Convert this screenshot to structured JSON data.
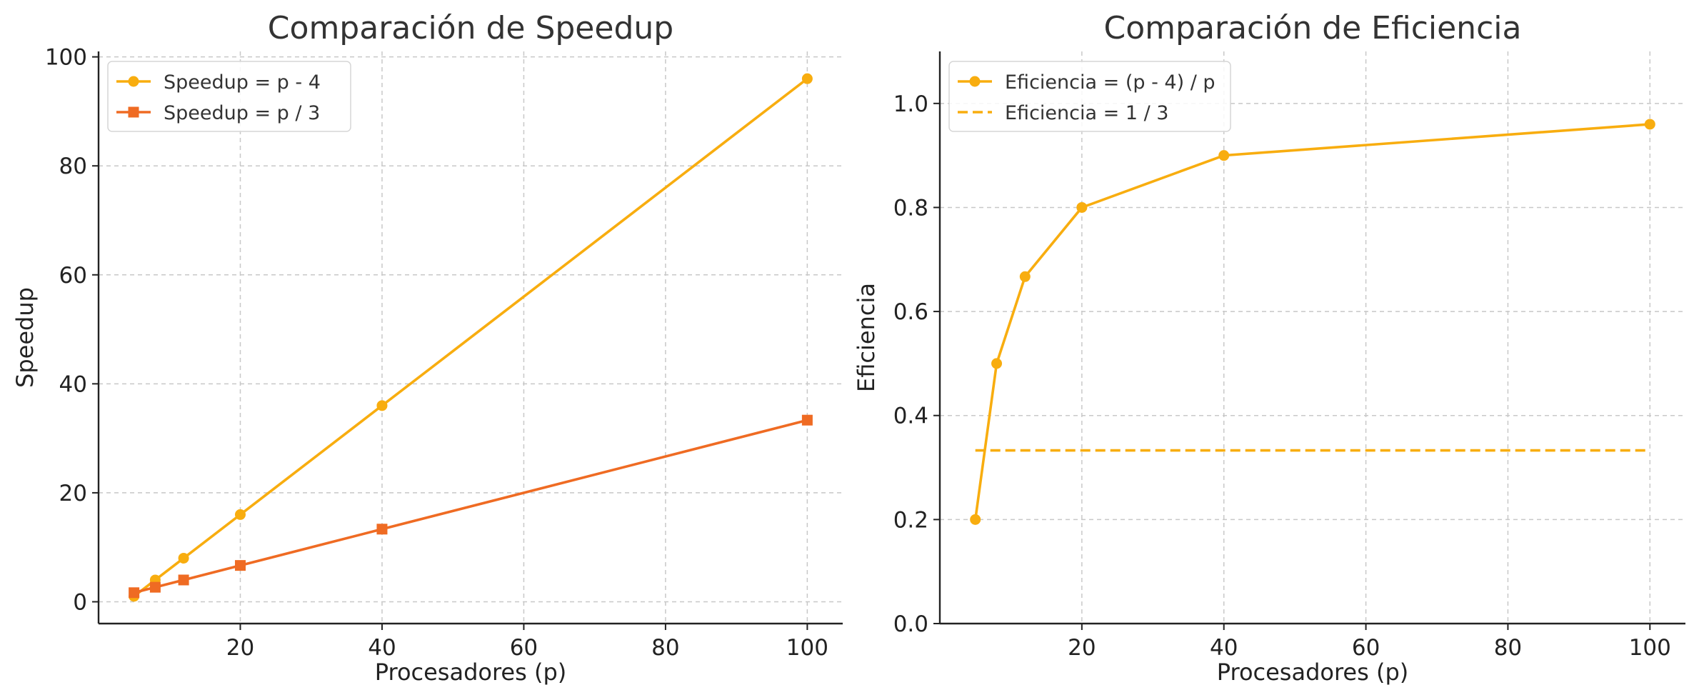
{
  "chart_data": [
    {
      "type": "line",
      "title": "Comparación de Speedup",
      "xlabel": "Procesadores (p)",
      "ylabel": "Speedup",
      "xlim": [
        0,
        105
      ],
      "ylim": [
        -4,
        101
      ],
      "xticks": [
        20,
        40,
        60,
        80,
        100
      ],
      "yticks": [
        0,
        20,
        40,
        60,
        80,
        100
      ],
      "xtick_labels": [
        "20",
        "40",
        "60",
        "80",
        "100"
      ],
      "ytick_labels": [
        "0",
        "20",
        "40",
        "60",
        "80",
        "100"
      ],
      "grid": true,
      "legend_position": "upper-left",
      "x": [
        5,
        8,
        12,
        20,
        40,
        100
      ],
      "series": [
        {
          "name": "Speedup = p - 4",
          "values": [
            1,
            4,
            8,
            16,
            36,
            96
          ],
          "color": "#f8ad0f",
          "marker": "circle",
          "linestyle": "solid"
        },
        {
          "name": "Speedup = p / 3",
          "values": [
            1.667,
            2.667,
            4,
            6.667,
            13.333,
            33.333
          ],
          "color": "#ef6b23",
          "marker": "square",
          "linestyle": "solid"
        }
      ]
    },
    {
      "type": "line",
      "title": "Comparación de Eficiencia",
      "xlabel": "Procesadores (p)",
      "ylabel": "Eficiencia",
      "xlim": [
        0,
        105
      ],
      "ylim": [
        0,
        1.1
      ],
      "xticks": [
        20,
        40,
        60,
        80,
        100
      ],
      "yticks": [
        0,
        0.2,
        0.4,
        0.6,
        0.8,
        1.0
      ],
      "xtick_labels": [
        "20",
        "40",
        "60",
        "80",
        "100"
      ],
      "ytick_labels": [
        "0.0",
        "0.2",
        "0.4",
        "0.6",
        "0.8",
        "1.0"
      ],
      "grid": true,
      "legend_position": "upper-left",
      "x": [
        5,
        8,
        12,
        20,
        40,
        100
      ],
      "series": [
        {
          "name": "Eficiencia = (p - 4) / p",
          "values": [
            0.2,
            0.5,
            0.667,
            0.8,
            0.9,
            0.96
          ],
          "color": "#f8ad0f",
          "marker": "circle",
          "linestyle": "solid"
        },
        {
          "name": "Eficiencia = 1 / 3",
          "values": [
            0.333,
            0.333,
            0.333,
            0.333,
            0.333,
            0.333
          ],
          "color": "#f8ad0f",
          "marker": "none",
          "linestyle": "dashed"
        }
      ]
    }
  ]
}
